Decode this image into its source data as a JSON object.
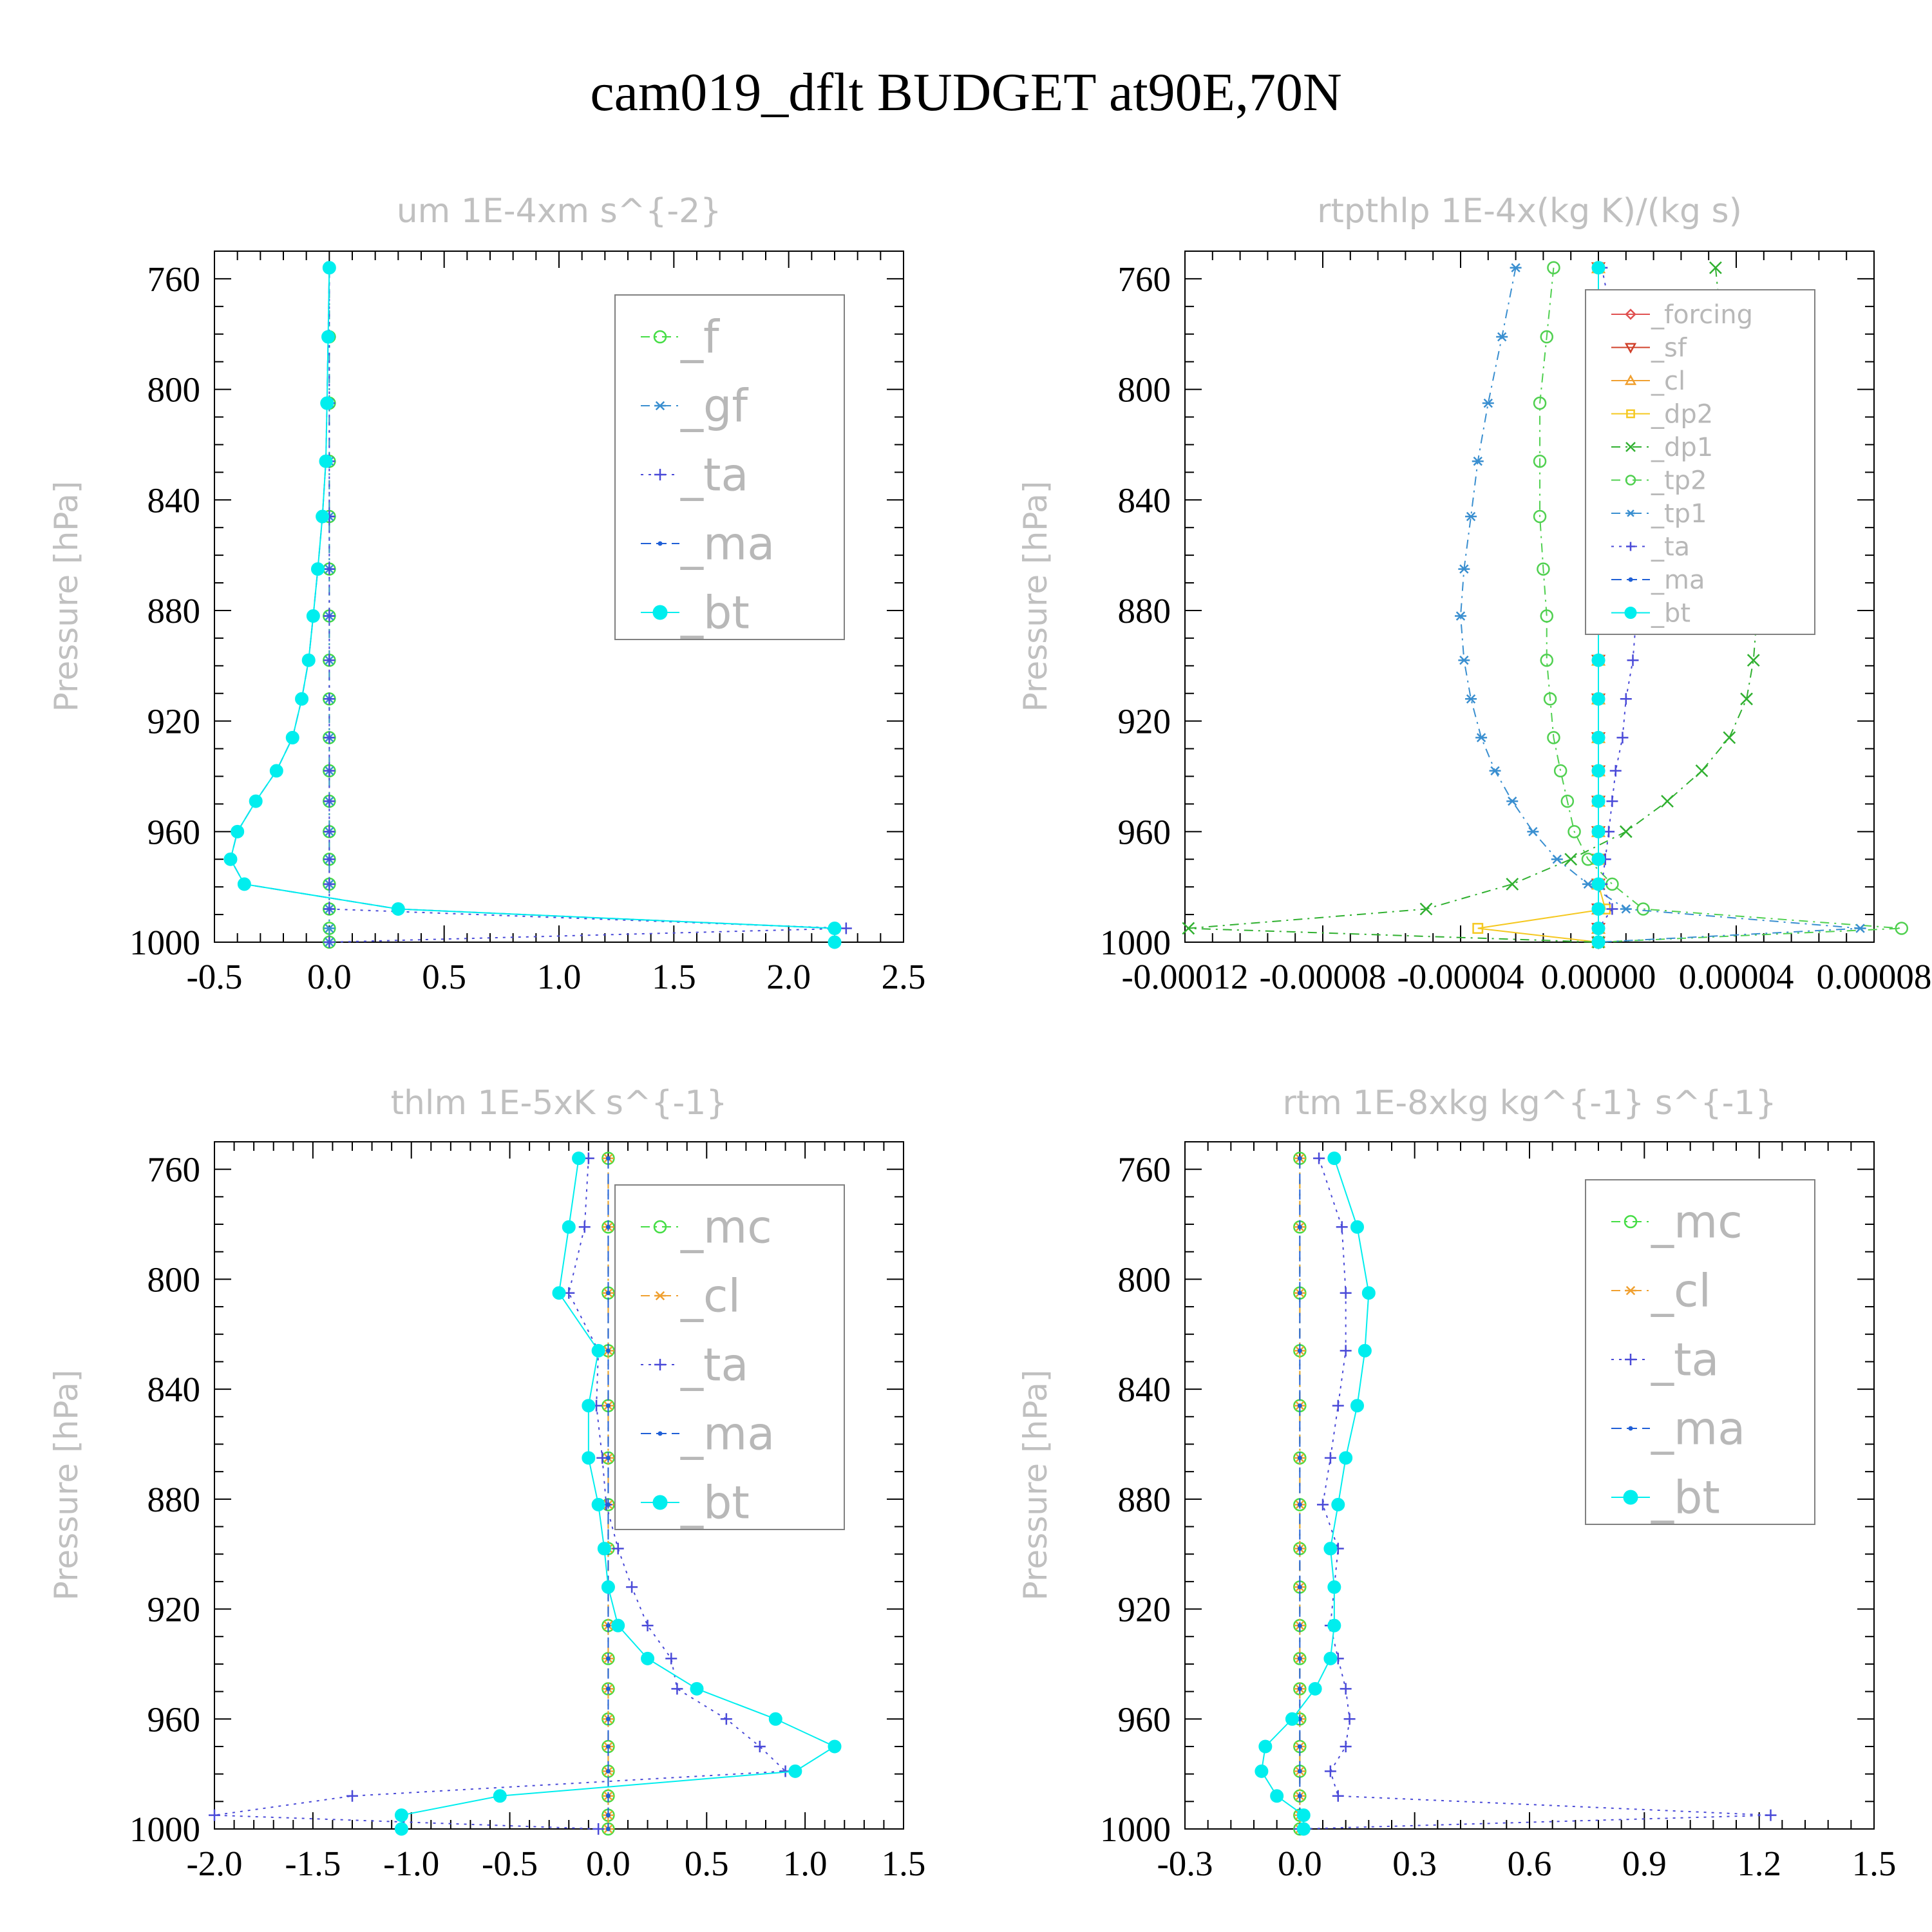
{
  "title": "cam019_dflt  BUDGET at90E,70N",
  "colors": {
    "f": "#44dd44",
    "gf": "#3a8fd0",
    "ta": "#4a4ad8",
    "ma": "#1f5fd6",
    "bt": "#00eeee",
    "forcing": "#e05050",
    "sf": "#d0402a",
    "cl": "#f0a030",
    "dp2": "#f5c820",
    "dp1": "#30b030",
    "tp2": "#50d050",
    "tp1": "#3a8fd0",
    "mc": "#44dd44"
  },
  "chart_data": [
    {
      "type": "line",
      "title": "um   1E-4xm s^{-2}",
      "ylabel": "Pressure [hPa]",
      "xlim": [
        -0.5,
        2.5
      ],
      "ylim": [
        750,
        1000
      ],
      "xticks": [
        -0.5,
        0.0,
        0.5,
        1.0,
        1.5,
        2.0,
        2.5
      ],
      "xticklabels": [
        "-0.5",
        "0.0",
        "0.5",
        "1.0",
        "1.5",
        "2.0",
        "2.5"
      ],
      "yticks": [
        760,
        800,
        840,
        880,
        920,
        960,
        1000
      ],
      "yticklabels": [
        "760",
        "800",
        "840",
        "880",
        "920",
        "960",
        "1000"
      ],
      "legend_font": 70,
      "y": [
        756,
        781,
        805,
        826,
        846,
        865,
        882,
        898,
        912,
        926,
        938,
        949,
        960,
        970,
        979,
        988,
        995,
        1000
      ],
      "series": [
        {
          "name": "_f",
          "key": "f",
          "marker": "circle",
          "dash": "14,8,3,8",
          "values": [
            0,
            0,
            0,
            0,
            0,
            0,
            0,
            0,
            0,
            0,
            0,
            0,
            0,
            0,
            0,
            0,
            0,
            0
          ]
        },
        {
          "name": "_gf",
          "key": "gf",
          "marker": "star",
          "dash": "14,8,3,8",
          "values": [
            0,
            0,
            0,
            0,
            0,
            0,
            0,
            0,
            0,
            0,
            0,
            0,
            0,
            0,
            0,
            0,
            0,
            0
          ]
        },
        {
          "name": "_ta",
          "key": "ta",
          "marker": "plus",
          "dash": "4,8",
          "values": [
            0,
            0,
            0,
            0,
            0,
            0,
            0,
            0,
            0,
            0,
            0,
            0,
            0,
            0,
            0,
            0,
            2.25,
            0
          ]
        },
        {
          "name": "_ma",
          "key": "ma",
          "marker": "dot",
          "dash": "16,8",
          "values": [
            0,
            -0.005,
            -0.01,
            -0.015,
            -0.03,
            -0.05,
            -0.07,
            -0.09,
            -0.12,
            -0.16,
            -0.23,
            -0.32,
            -0.4,
            -0.43,
            -0.37,
            0.3,
            2.2,
            2.2
          ]
        },
        {
          "name": "_bt",
          "key": "bt",
          "marker": "filled",
          "dash": "",
          "values": [
            0,
            -0.005,
            -0.01,
            -0.015,
            -0.03,
            -0.05,
            -0.07,
            -0.09,
            -0.12,
            -0.16,
            -0.23,
            -0.32,
            -0.4,
            -0.43,
            -0.37,
            0.3,
            2.2,
            2.2
          ]
        }
      ]
    },
    {
      "type": "line",
      "title": "rtpthlp   1E-4x(kg K)/(kg s)",
      "ylabel": "Pressure [hPa]",
      "xlim": [
        -0.00012,
        8e-05
      ],
      "ylim": [
        750,
        1000
      ],
      "xticks": [
        -0.00012,
        -8e-05,
        -4e-05,
        0.0,
        4e-05,
        8e-05
      ],
      "xticklabels": [
        "-0.00012",
        "-0.00008",
        "-0.00004",
        "0.00000",
        "0.00004",
        "0.00008"
      ],
      "yticks": [
        760,
        800,
        840,
        880,
        920,
        960,
        1000
      ],
      "yticklabels": [
        "760",
        "800",
        "840",
        "880",
        "920",
        "960",
        "1000"
      ],
      "legend_font": 40,
      "y": [
        756,
        781,
        805,
        826,
        846,
        865,
        882,
        898,
        912,
        926,
        938,
        949,
        960,
        970,
        979,
        988,
        995,
        1000
      ],
      "series": [
        {
          "name": "_forcing",
          "key": "forcing",
          "marker": "diamond",
          "dash": "",
          "values": [
            0,
            0,
            0,
            0,
            0,
            0,
            0,
            0,
            0,
            0,
            0,
            0,
            0,
            0,
            0,
            0,
            0,
            0
          ]
        },
        {
          "name": "_sf",
          "key": "sf",
          "marker": "tridown",
          "dash": "",
          "values": [
            0,
            0,
            0,
            0,
            0,
            0,
            0,
            0,
            0,
            0,
            0,
            0,
            0,
            0,
            0,
            0,
            0,
            0
          ]
        },
        {
          "name": "_cl",
          "key": "cl",
          "marker": "triup",
          "dash": "",
          "values": [
            0,
            0,
            0,
            0,
            0,
            0,
            0,
            0,
            0,
            0,
            0,
            0,
            0,
            0,
            0,
            0,
            0,
            0
          ]
        },
        {
          "name": "_dp2",
          "key": "dp2",
          "marker": "square",
          "dash": "",
          "values": [
            0,
            0,
            0,
            0,
            0,
            0,
            0,
            0,
            0,
            0,
            0,
            0,
            0,
            0,
            0,
            2e-06,
            -3.5e-05,
            0
          ]
        },
        {
          "name": "_dp1",
          "key": "dp1",
          "marker": "cross",
          "dash": "14,8,3,8",
          "values": [
            3.4e-05,
            3.6e-05,
            3.8e-05,
            4e-05,
            4.2e-05,
            4.4e-05,
            4.6e-05,
            4.5e-05,
            4.3e-05,
            3.8e-05,
            3e-05,
            2e-05,
            8e-06,
            -8e-06,
            -2.5e-05,
            -5e-05,
            -0.000119,
            0.0
          ]
        },
        {
          "name": "_tp2",
          "key": "tp2",
          "marker": "circle",
          "dash": "14,8,3,8",
          "values": [
            -1.3e-05,
            -1.5e-05,
            -1.7e-05,
            -1.7e-05,
            -1.7e-05,
            -1.6e-05,
            -1.5e-05,
            -1.5e-05,
            -1.4e-05,
            -1.3e-05,
            -1.1e-05,
            -9e-06,
            -7e-06,
            -3e-06,
            4e-06,
            1.3e-05,
            8.8e-05,
            0.0
          ]
        },
        {
          "name": "_tp1",
          "key": "tp1",
          "marker": "star",
          "dash": "14,8,3,8",
          "values": [
            -2.4e-05,
            -2.8e-05,
            -3.2e-05,
            -3.5e-05,
            -3.7e-05,
            -3.9e-05,
            -4e-05,
            -3.9e-05,
            -3.7e-05,
            -3.4e-05,
            -3e-05,
            -2.5e-05,
            -1.9e-05,
            -1.2e-05,
            -3e-06,
            8e-06,
            7.6e-05,
            0.0
          ]
        },
        {
          "name": "_ta",
          "key": "ta",
          "marker": "plus",
          "dash": "4,8",
          "values": [
            1e-06,
            5e-06,
            8e-06,
            1.1e-05,
            1.2e-05,
            1.2e-05,
            1.1e-05,
            1e-05,
            8e-06,
            7e-06,
            5e-06,
            4e-06,
            3e-06,
            2e-06,
            1e-06,
            4e-06,
            0.0,
            0.0
          ]
        },
        {
          "name": "_ma",
          "key": "ma",
          "marker": "dot",
          "dash": "16,8",
          "values": [
            0,
            0,
            0,
            0,
            0,
            0,
            0,
            0,
            0,
            0,
            0,
            0,
            0,
            0,
            0,
            0,
            0,
            0
          ]
        },
        {
          "name": "_bt",
          "key": "bt",
          "marker": "filled",
          "dash": "",
          "values": [
            0,
            0,
            0,
            0,
            0,
            0,
            0,
            0,
            0,
            0,
            0,
            0,
            0,
            0,
            0,
            0,
            0,
            0
          ]
        }
      ]
    },
    {
      "type": "line",
      "title": "thlm   1E-5xK s^{-1}",
      "ylabel": "Pressure [hPa]",
      "xlim": [
        -2.0,
        1.5
      ],
      "ylim": [
        750,
        1000
      ],
      "xticks": [
        -2.0,
        -1.5,
        -1.0,
        -0.5,
        0.0,
        0.5,
        1.0,
        1.5
      ],
      "xticklabels": [
        "-2.0",
        "-1.5",
        "-1.0",
        "-0.5",
        "0.0",
        "0.5",
        "1.0",
        "1.5"
      ],
      "yticks": [
        760,
        800,
        840,
        880,
        920,
        960,
        1000
      ],
      "yticklabels": [
        "760",
        "800",
        "840",
        "880",
        "920",
        "960",
        "1000"
      ],
      "legend_font": 70,
      "y": [
        756,
        781,
        805,
        826,
        846,
        865,
        882,
        898,
        912,
        926,
        938,
        949,
        960,
        970,
        979,
        988,
        995,
        1000
      ],
      "series": [
        {
          "name": "_mc",
          "key": "mc",
          "marker": "circle",
          "dash": "14,8,3,8",
          "values": [
            0,
            0,
            0,
            0,
            0,
            0,
            0,
            0,
            0,
            0,
            0,
            0,
            0,
            0,
            0,
            0,
            0,
            0
          ]
        },
        {
          "name": "_cl",
          "key": "cl",
          "marker": "star",
          "dash": "14,8,3,8",
          "values": [
            0,
            0,
            0,
            0,
            0,
            0,
            0,
            0,
            0,
            0,
            0,
            0,
            0,
            0,
            0,
            0,
            0,
            0
          ]
        },
        {
          "name": "_ta",
          "key": "ta",
          "marker": "plus",
          "dash": "4,8",
          "values": [
            -0.1,
            -0.12,
            -0.2,
            -0.05,
            -0.06,
            -0.03,
            -0.01,
            0.05,
            0.12,
            0.2,
            0.32,
            0.35,
            0.6,
            0.77,
            0.9,
            -1.3,
            -2.0,
            -0.05
          ]
        },
        {
          "name": "_ma",
          "key": "ma",
          "marker": "dot",
          "dash": "16,8",
          "values": [
            0,
            0,
            0,
            0,
            0,
            0,
            0,
            0,
            0,
            0,
            0,
            0,
            0,
            0,
            0,
            0,
            0,
            0
          ]
        },
        {
          "name": "_bt",
          "key": "bt",
          "marker": "filled",
          "dash": "",
          "values": [
            -0.15,
            -0.2,
            -0.25,
            -0.05,
            -0.1,
            -0.1,
            -0.05,
            -0.02,
            0.0,
            0.05,
            0.2,
            0.45,
            0.85,
            1.15,
            0.95,
            -0.55,
            -1.05,
            -1.05
          ]
        }
      ]
    },
    {
      "type": "line",
      "title": "rtm   1E-8xkg kg^{-1} s^{-1}",
      "ylabel": "Pressure [hPa]",
      "xlim": [
        -0.3,
        1.5
      ],
      "ylim": [
        750,
        1000
      ],
      "xticks": [
        -0.3,
        0.0,
        0.3,
        0.6,
        0.9,
        1.2,
        1.5
      ],
      "xticklabels": [
        "-0.3",
        "0.0",
        "0.3",
        "0.6",
        "0.9",
        "1.2",
        "1.5"
      ],
      "yticks": [
        760,
        800,
        840,
        880,
        920,
        960,
        1000
      ],
      "yticklabels": [
        "760",
        "800",
        "840",
        "880",
        "920",
        "960",
        "1000"
      ],
      "legend_font": 70,
      "y": [
        756,
        781,
        805,
        826,
        846,
        865,
        882,
        898,
        912,
        926,
        938,
        949,
        960,
        970,
        979,
        988,
        995,
        1000
      ],
      "series": [
        {
          "name": "_mc",
          "key": "mc",
          "marker": "circle",
          "dash": "14,8,3,8",
          "values": [
            0,
            0,
            0,
            0,
            0,
            0,
            0,
            0,
            0,
            0,
            0,
            0,
            0,
            0,
            0,
            0,
            0,
            0
          ]
        },
        {
          "name": "_cl",
          "key": "cl",
          "marker": "star",
          "dash": "14,8,3,8",
          "values": [
            0,
            0,
            0,
            0,
            0,
            0,
            0,
            0,
            0,
            0,
            0,
            0,
            0,
            0,
            0,
            0,
            0,
            0
          ]
        },
        {
          "name": "_ta",
          "key": "ta",
          "marker": "plus",
          "dash": "4,8",
          "values": [
            0.05,
            0.11,
            0.12,
            0.12,
            0.1,
            0.08,
            0.06,
            0.1,
            0.09,
            0.08,
            0.1,
            0.12,
            0.13,
            0.12,
            0.08,
            0.1,
            1.23,
            0.0
          ]
        },
        {
          "name": "_ma",
          "key": "ma",
          "marker": "dot",
          "dash": "16,8",
          "values": [
            0,
            0,
            0,
            0,
            0,
            0,
            0,
            0,
            0,
            0,
            0,
            0,
            0,
            0,
            0,
            0,
            0,
            0
          ]
        },
        {
          "name": "_bt",
          "key": "bt",
          "marker": "filled",
          "dash": "",
          "values": [
            0.09,
            0.15,
            0.18,
            0.17,
            0.15,
            0.12,
            0.1,
            0.08,
            0.09,
            0.09,
            0.08,
            0.04,
            -0.02,
            -0.09,
            -0.1,
            -0.06,
            0.01,
            0.01
          ]
        }
      ]
    }
  ]
}
